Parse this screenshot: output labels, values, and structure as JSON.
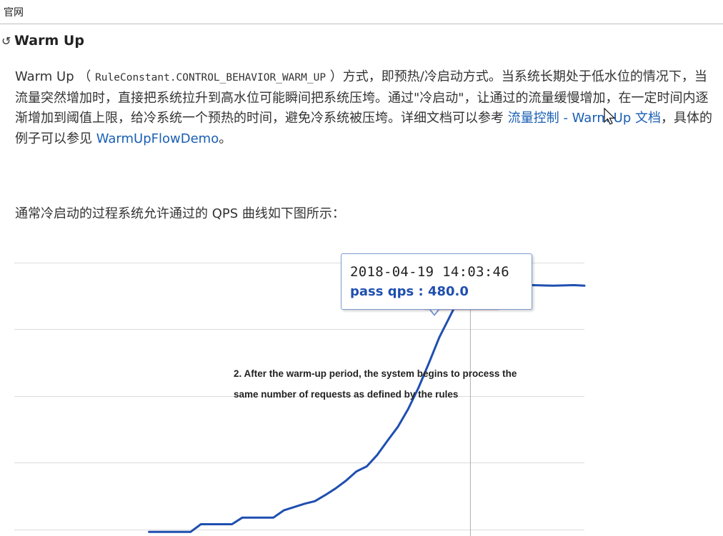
{
  "topbar": {
    "label": "官网"
  },
  "section": {
    "title": "Warm Up"
  },
  "intro": {
    "t1": "Warm Up （ ",
    "code": "RuleConstant.CONTROL_BEHAVIOR_WARM_UP",
    "t2": " ）方式，即预热/冷启动方式。当系统长期处于低水位的情况下，当流量突然增加时，直接把系统拉升到高水位可能瞬间把系统压垮。通过\"冷启动\"，让通过的流量缓慢增加，在一定时间内逐渐增加到阈值上限，给冷系统一个预热的时间，避免冷系统被压垮。详细文档可以参考 ",
    "link1": "流量控制 - Warm Up 文档",
    "t3": "，具体的例子可以参见 ",
    "link2": "WarmUpFlowDemo",
    "t4": "。"
  },
  "para2": "通常冷启动的过程系统允许通过的 QPS 曲线如下图所示：",
  "tooltip": {
    "timestamp": "2018-04-19 14:03:46",
    "qps": "pass qps : 480.0"
  },
  "annotation": {
    "line1": "2. After the warm-up period, the system begins to process the",
    "line2": "same number of requests as defined by the rules"
  },
  "chart_data": {
    "type": "line",
    "title": "",
    "xlabel": "",
    "ylabel": "",
    "grid": true,
    "series": [
      {
        "color": "#1f4fb0",
        "points": [
          [
            0,
            0
          ],
          [
            4,
            0
          ],
          [
            5,
            15
          ],
          [
            8,
            15
          ],
          [
            9,
            28
          ],
          [
            12,
            28
          ],
          [
            13,
            42
          ],
          [
            15,
            55
          ],
          [
            16,
            60
          ],
          [
            17,
            72
          ],
          [
            18,
            85
          ],
          [
            19,
            100
          ],
          [
            20,
            118
          ],
          [
            21,
            128
          ],
          [
            22,
            150
          ],
          [
            23,
            178
          ],
          [
            24,
            205
          ],
          [
            25,
            240
          ],
          [
            26,
            282
          ],
          [
            27,
            330
          ],
          [
            28,
            380
          ],
          [
            29,
            420
          ],
          [
            30,
            460
          ],
          [
            31,
            480
          ],
          [
            33,
            482
          ],
          [
            35,
            479
          ],
          [
            37,
            482
          ],
          [
            39,
            481
          ],
          [
            41,
            482
          ],
          [
            42,
            481
          ]
        ]
      }
    ],
    "highlight": {
      "x": 31,
      "y": 480
    },
    "xlim": [
      -13,
      42
    ],
    "ylim": [
      -8,
      565
    ],
    "colors": {
      "line": "#1f4fb0",
      "grid": "#dcdcdc",
      "crosshair": "#b0b0b0",
      "box": "#d8312b",
      "marker": "#2d5fc0"
    }
  }
}
